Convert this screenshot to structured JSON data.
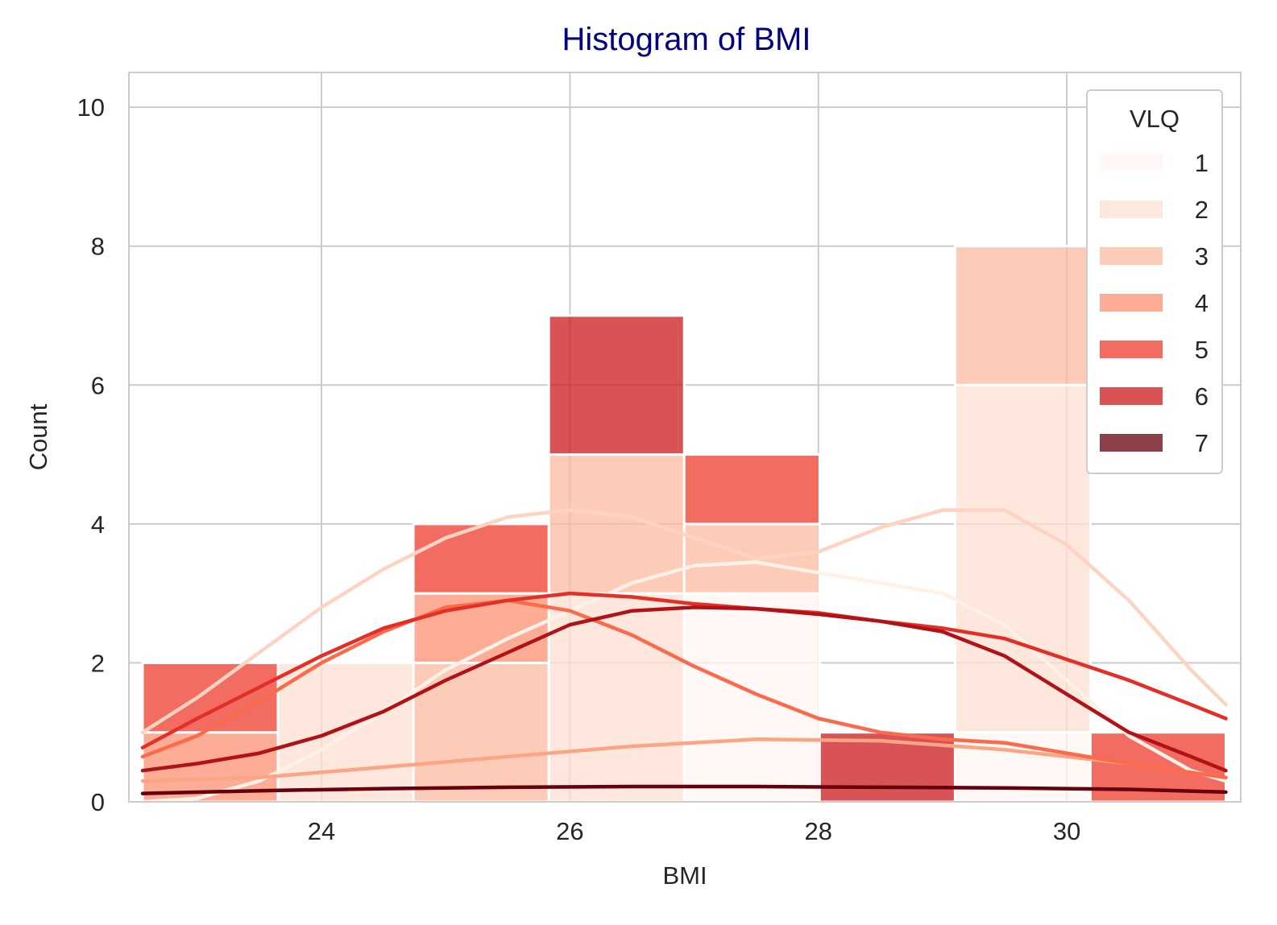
{
  "chart_data": {
    "type": "histogram",
    "title": "Histogram of BMI",
    "xlabel": "BMI",
    "ylabel": "Count",
    "xlim": [
      22.45,
      31.4
    ],
    "ylim": [
      0,
      10.5
    ],
    "xticks": [
      24,
      26,
      28,
      30
    ],
    "yticks": [
      0,
      2,
      4,
      6,
      8,
      10
    ],
    "grid": true,
    "legend": {
      "title": "VLQ",
      "position": "top-right"
    },
    "bin_edges": [
      22.56,
      23.65,
      24.74,
      25.83,
      26.92,
      28.01,
      29.1,
      30.19,
      31.28
    ],
    "series": [
      {
        "name": "1",
        "color": "#fff5f0",
        "counts": [
          0,
          0,
          0,
          0,
          3,
          0,
          1,
          0
        ]
      },
      {
        "name": "2",
        "color": "#fee0d2",
        "counts": [
          0,
          2,
          0,
          3,
          0,
          0,
          5,
          0
        ]
      },
      {
        "name": "3",
        "color": "#fcbba1",
        "counts": [
          0,
          0,
          2,
          2,
          1,
          0,
          2,
          0
        ]
      },
      {
        "name": "4",
        "color": "#fc9272",
        "counts": [
          1,
          0,
          1,
          0,
          0,
          0,
          0,
          0
        ]
      },
      {
        "name": "5",
        "color": "#ef3b2c",
        "counts": [
          1,
          0,
          1,
          0,
          1,
          0,
          0,
          1
        ]
      },
      {
        "name": "6",
        "color": "#cb181d",
        "counts": [
          0,
          0,
          0,
          2,
          0,
          1,
          0,
          0
        ]
      },
      {
        "name": "7",
        "color": "#67000d",
        "counts": [
          0,
          0,
          0,
          0,
          0,
          0,
          0,
          0
        ]
      }
    ],
    "kde": [
      {
        "name": "1",
        "color": "#fff0e8",
        "points": [
          [
            22.56,
            0.0
          ],
          [
            23.0,
            0.05
          ],
          [
            23.5,
            0.3
          ],
          [
            24.0,
            0.75
          ],
          [
            24.5,
            1.3
          ],
          [
            25.0,
            1.9
          ],
          [
            25.5,
            2.35
          ],
          [
            26.0,
            2.75
          ],
          [
            26.5,
            3.15
          ],
          [
            27.0,
            3.4
          ],
          [
            27.5,
            3.45
          ],
          [
            28.0,
            3.3
          ],
          [
            28.5,
            3.15
          ],
          [
            29.0,
            3.0
          ],
          [
            29.5,
            2.55
          ],
          [
            30.0,
            1.75
          ],
          [
            30.5,
            0.95
          ],
          [
            31.0,
            0.45
          ],
          [
            31.28,
            0.3
          ]
        ]
      },
      {
        "name": "2",
        "color": "#fdd4c2",
        "points": [
          [
            22.56,
            1.0
          ],
          [
            23.0,
            1.5
          ],
          [
            23.5,
            2.15
          ],
          [
            24.0,
            2.8
          ],
          [
            24.5,
            3.35
          ],
          [
            25.0,
            3.8
          ],
          [
            25.5,
            4.1
          ],
          [
            26.0,
            4.2
          ],
          [
            26.5,
            4.1
          ],
          [
            27.0,
            3.8
          ],
          [
            27.5,
            3.5
          ],
          [
            28.0,
            3.6
          ],
          [
            28.5,
            3.95
          ],
          [
            29.0,
            4.2
          ],
          [
            29.5,
            4.2
          ],
          [
            30.0,
            3.7
          ],
          [
            30.5,
            2.9
          ],
          [
            31.0,
            1.9
          ],
          [
            31.28,
            1.4
          ]
        ]
      },
      {
        "name": "3",
        "color": "#fca486",
        "points": [
          [
            22.56,
            0.3
          ],
          [
            23.5,
            0.35
          ],
          [
            24.5,
            0.5
          ],
          [
            25.5,
            0.65
          ],
          [
            26.5,
            0.8
          ],
          [
            27.5,
            0.9
          ],
          [
            28.5,
            0.88
          ],
          [
            29.5,
            0.75
          ],
          [
            30.5,
            0.55
          ],
          [
            31.28,
            0.35
          ]
        ]
      },
      {
        "name": "4",
        "color": "#fb6a4a",
        "points": [
          [
            22.56,
            0.65
          ],
          [
            23.0,
            0.95
          ],
          [
            23.5,
            1.45
          ],
          [
            24.0,
            2.0
          ],
          [
            24.5,
            2.45
          ],
          [
            25.0,
            2.8
          ],
          [
            25.5,
            2.9
          ],
          [
            26.0,
            2.75
          ],
          [
            26.5,
            2.4
          ],
          [
            27.0,
            1.95
          ],
          [
            27.5,
            1.55
          ],
          [
            28.0,
            1.2
          ],
          [
            28.5,
            1.0
          ],
          [
            29.0,
            0.9
          ],
          [
            29.5,
            0.85
          ],
          [
            30.0,
            0.7
          ],
          [
            30.5,
            0.55
          ],
          [
            31.28,
            0.35
          ]
        ]
      },
      {
        "name": "5",
        "color": "#e32f27",
        "points": [
          [
            22.56,
            0.78
          ],
          [
            23.0,
            1.2
          ],
          [
            23.5,
            1.65
          ],
          [
            24.0,
            2.1
          ],
          [
            24.5,
            2.5
          ],
          [
            25.0,
            2.75
          ],
          [
            25.5,
            2.9
          ],
          [
            26.0,
            3.0
          ],
          [
            26.5,
            2.95
          ],
          [
            27.0,
            2.85
          ],
          [
            27.5,
            2.78
          ],
          [
            28.0,
            2.72
          ],
          [
            28.5,
            2.6
          ],
          [
            29.0,
            2.5
          ],
          [
            29.5,
            2.35
          ],
          [
            30.0,
            2.05
          ],
          [
            30.5,
            1.75
          ],
          [
            31.0,
            1.4
          ],
          [
            31.28,
            1.2
          ]
        ]
      },
      {
        "name": "6",
        "color": "#b11218",
        "points": [
          [
            22.56,
            0.45
          ],
          [
            23.0,
            0.55
          ],
          [
            23.5,
            0.7
          ],
          [
            24.0,
            0.95
          ],
          [
            24.5,
            1.3
          ],
          [
            25.0,
            1.75
          ],
          [
            25.5,
            2.15
          ],
          [
            26.0,
            2.55
          ],
          [
            26.5,
            2.75
          ],
          [
            27.0,
            2.8
          ],
          [
            27.5,
            2.78
          ],
          [
            28.0,
            2.7
          ],
          [
            28.5,
            2.6
          ],
          [
            29.0,
            2.45
          ],
          [
            29.5,
            2.1
          ],
          [
            30.0,
            1.55
          ],
          [
            30.5,
            1.0
          ],
          [
            31.0,
            0.65
          ],
          [
            31.28,
            0.45
          ]
        ]
      },
      {
        "name": "7",
        "color": "#67000d",
        "points": [
          [
            22.56,
            0.12
          ],
          [
            23.5,
            0.16
          ],
          [
            24.5,
            0.19
          ],
          [
            25.5,
            0.21
          ],
          [
            26.5,
            0.22
          ],
          [
            27.5,
            0.22
          ],
          [
            28.5,
            0.21
          ],
          [
            29.5,
            0.2
          ],
          [
            30.5,
            0.18
          ],
          [
            31.28,
            0.14
          ]
        ]
      }
    ]
  }
}
